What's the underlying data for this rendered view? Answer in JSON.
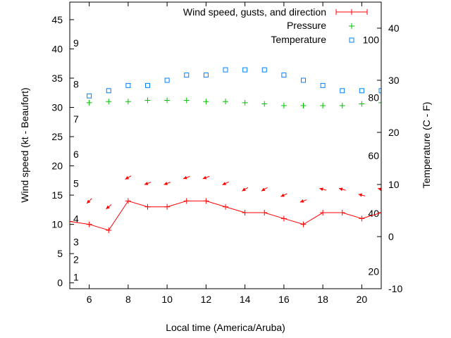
{
  "chart_data": {
    "type": "line",
    "title": "",
    "xlabel": "Local time (America/Aruba)",
    "ylabel": "Wind speed (kt - Beaufort)",
    "y2label": "Temperature (C - F)",
    "xlim": [
      5,
      21
    ],
    "ylim": [
      -1,
      48
    ],
    "y2lim": [
      -10,
      45
    ],
    "xticks": [
      6,
      8,
      10,
      12,
      14,
      16,
      18,
      20
    ],
    "yticks": [
      0,
      5,
      10,
      15,
      20,
      25,
      30,
      35,
      40,
      45
    ],
    "y2ticks": [
      -10,
      0,
      10,
      20,
      30,
      40
    ],
    "beaufort_labels": [
      {
        "label": "1",
        "kt": 1
      },
      {
        "label": "2",
        "kt": 4
      },
      {
        "label": "3",
        "kt": 7
      },
      {
        "label": "4",
        "kt": 11
      },
      {
        "label": "5",
        "kt": 17
      },
      {
        "label": "6",
        "kt": 22
      },
      {
        "label": "7",
        "kt": 28
      },
      {
        "label": "8",
        "kt": 34
      },
      {
        "label": "9",
        "kt": 41
      }
    ],
    "fahrenheit_labels": [
      {
        "label": "20",
        "f": 20
      },
      {
        "label": "40",
        "f": 40
      },
      {
        "label": "60",
        "f": 60
      },
      {
        "label": "80",
        "f": 80
      },
      {
        "label": "100",
        "f": 100
      }
    ],
    "legend_position": "top-right",
    "series": [
      {
        "name": "Wind speed, gusts, and direction",
        "color": "#ff0000",
        "axis": "y",
        "x": [
          5,
          6,
          7,
          8,
          9,
          10,
          11,
          12,
          13,
          14,
          15,
          16,
          17,
          18,
          19,
          20,
          21
        ],
        "values": [
          10.5,
          10,
          9,
          14,
          13,
          13,
          14,
          14,
          13,
          12,
          12,
          11,
          10,
          12,
          12,
          11,
          12
        ],
        "gusts": {
          "x": [
            6,
            7,
            8,
            9,
            10,
            11,
            12,
            13,
            14,
            15,
            16,
            17,
            18,
            19,
            20,
            21
          ],
          "values": [
            14,
            13,
            18,
            17,
            17,
            18,
            18,
            17,
            16,
            16,
            15,
            14,
            16,
            16,
            15,
            16
          ],
          "direction_deg": [
            135,
            130,
            120,
            110,
            110,
            110,
            110,
            115,
            120,
            120,
            115,
            110,
            75,
            75,
            75,
            75
          ]
        }
      },
      {
        "name": "Pressure",
        "color": "#00c000",
        "axis": "y",
        "x": [
          6,
          7,
          8,
          9,
          10,
          11,
          12,
          13,
          14,
          15,
          16,
          17,
          18,
          19,
          20,
          21
        ],
        "values": [
          30.8,
          31,
          31,
          31.2,
          31.2,
          31.2,
          31,
          31,
          30.8,
          30.6,
          30.3,
          30.3,
          30.3,
          30.3,
          30.6,
          30.8
        ]
      },
      {
        "name": "Temperature",
        "color": "#0080ff",
        "axis": "y2",
        "x": [
          6,
          7,
          8,
          9,
          10,
          11,
          12,
          13,
          14,
          15,
          16,
          17,
          18,
          19,
          20,
          21
        ],
        "values": [
          27,
          28,
          29,
          29,
          30,
          31,
          31,
          32,
          32,
          32,
          31,
          30,
          29,
          28,
          28,
          28
        ]
      }
    ]
  }
}
